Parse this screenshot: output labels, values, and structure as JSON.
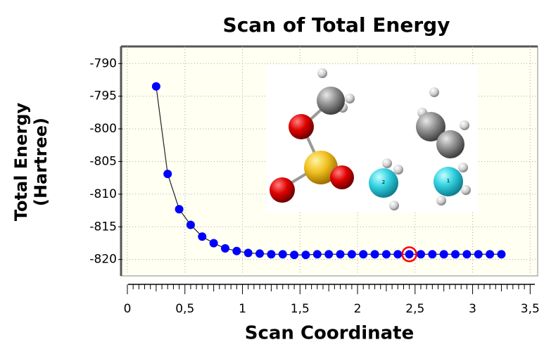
{
  "chart_data": {
    "type": "line",
    "title": "Scan of Total Energy",
    "xlabel": "Scan Coordinate",
    "ylabel": [
      "Total Energy",
      "(Hartree)"
    ],
    "x": [
      0.25,
      0.35,
      0.45,
      0.55,
      0.65,
      0.75,
      0.85,
      0.95,
      1.05,
      1.15,
      1.25,
      1.35,
      1.45,
      1.55,
      1.65,
      1.75,
      1.85,
      1.95,
      2.05,
      2.15,
      2.25,
      2.35,
      2.45,
      2.55,
      2.65,
      2.75,
      2.85,
      2.95,
      3.05,
      3.15,
      3.25
    ],
    "series": [
      {
        "name": "Total Energy",
        "color": "#0000ff",
        "values": [
          -793.5,
          -806.9,
          -812.3,
          -814.7,
          -816.5,
          -817.5,
          -818.3,
          -818.7,
          -819.0,
          -819.1,
          -819.2,
          -819.2,
          -819.3,
          -819.3,
          -819.2,
          -819.2,
          -819.2,
          -819.2,
          -819.2,
          -819.2,
          -819.2,
          -819.2,
          -819.2,
          -819.2,
          -819.2,
          -819.2,
          -819.2,
          -819.2,
          -819.2,
          -819.2,
          -819.2
        ]
      }
    ],
    "highlight_point": 22,
    "xlim": [
      -0.055,
      3.553
    ],
    "ylim": [
      -787.6,
      -822.3
    ],
    "xticks": [
      0,
      {
        "value": 0.5,
        "label": "0,5"
      },
      1,
      {
        "value": 1.5,
        "label": "1,5"
      },
      2,
      {
        "value": 2.5,
        "label": "2,5"
      },
      3,
      {
        "value": 3.5,
        "label": "3,5"
      }
    ],
    "yticks": [
      -790,
      -795,
      -800,
      -805,
      -810,
      -815,
      -820
    ],
    "grid": true,
    "inset_labels": [
      "2",
      "1"
    ]
  }
}
